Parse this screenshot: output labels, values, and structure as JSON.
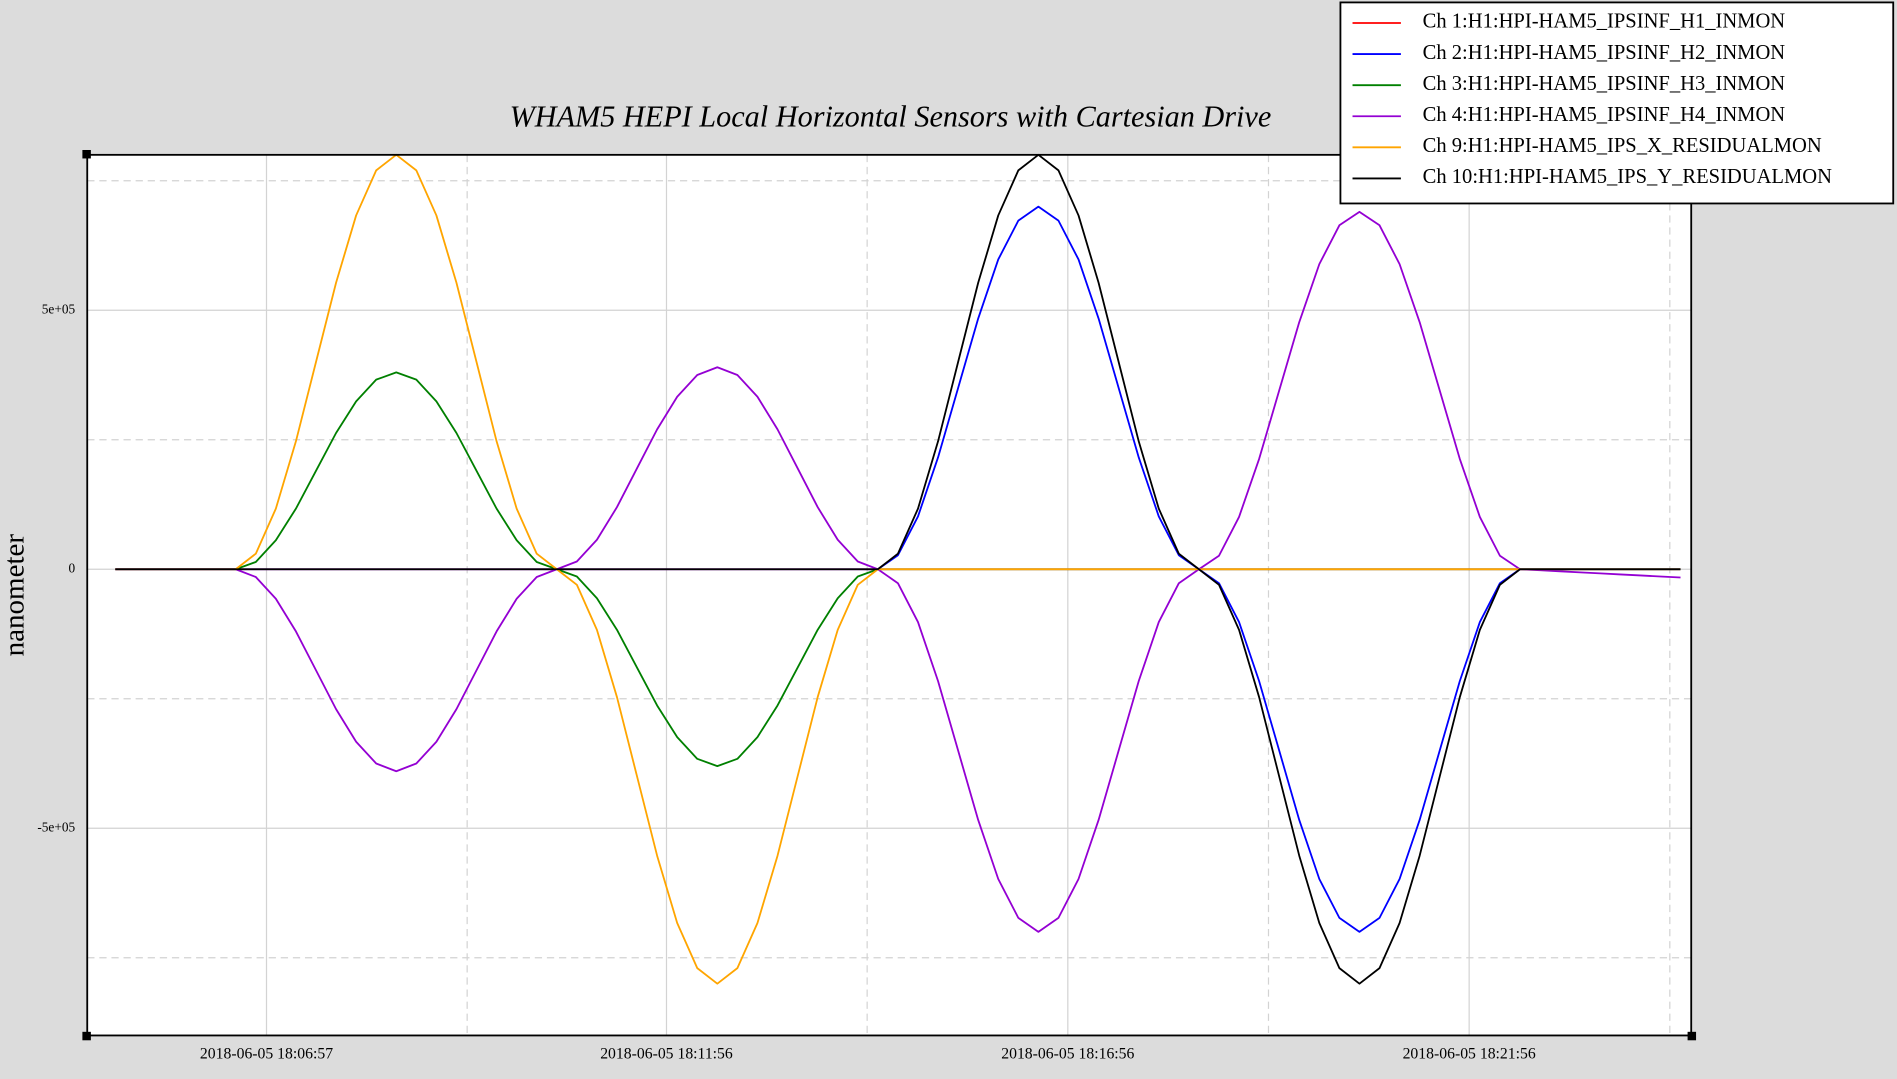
{
  "chart_data": {
    "type": "line",
    "title": "WHAM5 HEPI Local Horizontal Sensors with Cartesian Drive",
    "y_label": "nanometer",
    "legend": "upper right",
    "grid": true,
    "xlim": [
      "2018-06-05 18:04:43",
      "2018-06-05 18:24:42"
    ],
    "xticks": [
      "2018-06-05 18:06:57",
      "2018-06-05 18:11:56",
      "2018-06-05 18:16:56",
      "2018-06-05 18:21:56"
    ],
    "xminorticks": [
      "2018-06-05 18:09:27",
      "2018-06-05 18:14:26",
      "2018-06-05 18:19:26",
      "2018-06-05 18:24:26"
    ],
    "ylim": [
      -900000,
      800000
    ],
    "yticks": [
      {
        "value": -500000,
        "label": "-5e+05"
      },
      0,
      {
        "value": 500000,
        "label": "5e+05"
      }
    ],
    "yminorticks": [
      -750000,
      -250000,
      250000,
      750000
    ],
    "x": [
      "2018-06-05 18:05:04",
      "2018-06-05 18:05:19",
      "2018-06-05 18:05:34",
      "2018-06-05 18:05:49",
      "2018-06-05 18:06:04",
      "2018-06-05 18:06:19",
      "2018-06-05 18:06:34",
      "2018-06-05 18:06:49",
      "2018-06-05 18:07:04",
      "2018-06-05 18:07:19",
      "2018-06-05 18:07:34",
      "2018-06-05 18:07:49",
      "2018-06-05 18:08:04",
      "2018-06-05 18:08:19",
      "2018-06-05 18:08:34",
      "2018-06-05 18:08:49",
      "2018-06-05 18:09:04",
      "2018-06-05 18:09:19",
      "2018-06-05 18:09:34",
      "2018-06-05 18:09:49",
      "2018-06-05 18:10:04",
      "2018-06-05 18:10:19",
      "2018-06-05 18:10:34",
      "2018-06-05 18:10:49",
      "2018-06-05 18:11:04",
      "2018-06-05 18:11:19",
      "2018-06-05 18:11:34",
      "2018-06-05 18:11:49",
      "2018-06-05 18:12:04",
      "2018-06-05 18:12:19",
      "2018-06-05 18:12:34",
      "2018-06-05 18:12:49",
      "2018-06-05 18:13:04",
      "2018-06-05 18:13:19",
      "2018-06-05 18:13:34",
      "2018-06-05 18:13:49",
      "2018-06-05 18:14:04",
      "2018-06-05 18:14:19",
      "2018-06-05 18:14:34",
      "2018-06-05 18:14:49",
      "2018-06-05 18:15:04",
      "2018-06-05 18:15:19",
      "2018-06-05 18:15:34",
      "2018-06-05 18:15:49",
      "2018-06-05 18:16:04",
      "2018-06-05 18:16:19",
      "2018-06-05 18:16:34",
      "2018-06-05 18:16:49",
      "2018-06-05 18:17:04",
      "2018-06-05 18:17:19",
      "2018-06-05 18:17:34",
      "2018-06-05 18:17:49",
      "2018-06-05 18:18:04",
      "2018-06-05 18:18:19",
      "2018-06-05 18:18:34",
      "2018-06-05 18:18:49",
      "2018-06-05 18:19:04",
      "2018-06-05 18:19:19",
      "2018-06-05 18:19:34",
      "2018-06-05 18:19:49",
      "2018-06-05 18:20:04",
      "2018-06-05 18:20:19",
      "2018-06-05 18:20:34",
      "2018-06-05 18:20:49",
      "2018-06-05 18:21:04",
      "2018-06-05 18:21:19",
      "2018-06-05 18:21:34",
      "2018-06-05 18:21:49",
      "2018-06-05 18:22:04",
      "2018-06-05 18:22:19",
      "2018-06-05 18:22:34",
      "2018-06-05 18:22:49",
      "2018-06-05 18:23:04",
      "2018-06-05 18:23:19",
      "2018-06-05 18:23:34",
      "2018-06-05 18:23:49",
      "2018-06-05 18:24:04",
      "2018-06-05 18:24:19",
      "2018-06-05 18:24:34"
    ],
    "series": [
      {
        "name": "Ch 1:H1:HPI-HAM5_IPSINF_H1_INMON",
        "color": "#ff0000",
        "values": [
          0,
          0,
          0,
          0,
          0,
          0,
          0,
          0,
          0,
          0,
          0,
          0,
          0,
          0,
          0,
          0,
          0,
          0,
          0,
          0,
          0,
          0,
          0,
          0,
          0,
          0,
          0,
          0,
          0,
          0,
          0,
          0,
          0,
          0,
          0,
          0,
          0,
          0,
          0,
          0,
          0,
          0,
          0,
          0,
          0,
          0,
          0,
          0,
          0,
          0,
          0,
          0,
          0,
          0,
          0,
          0,
          0,
          0,
          0,
          0,
          0,
          0,
          0,
          0,
          0,
          0,
          0,
          0,
          0,
          0,
          0,
          0,
          0,
          0,
          0,
          0,
          0,
          0,
          0
        ]
      },
      {
        "name": "Ch 2:H1:HPI-HAM5_IPSINF_H2_INMON",
        "color": "#0000ff",
        "values": [
          0,
          0,
          0,
          0,
          0,
          0,
          0,
          0,
          0,
          0,
          0,
          0,
          0,
          0,
          0,
          0,
          0,
          0,
          0,
          0,
          0,
          0,
          0,
          0,
          0,
          0,
          0,
          0,
          0,
          0,
          0,
          0,
          0,
          0,
          0,
          0,
          0,
          0,
          0,
          27000,
          102000,
          216000,
          350000,
          484000,
          598000,
          673000,
          700000,
          673000,
          598000,
          484000,
          350000,
          216000,
          102000,
          27000,
          0,
          -27000,
          -102000,
          -216000,
          -350000,
          -484000,
          -598000,
          -673000,
          -700000,
          -673000,
          -598000,
          -484000,
          -350000,
          -216000,
          -102000,
          -27000,
          0,
          0,
          0,
          0,
          0,
          0,
          0,
          0,
          0
        ]
      },
      {
        "name": "Ch 3:H1:HPI-HAM5_IPSINF_H3_INMON",
        "color": "#008000",
        "values": [
          0,
          0,
          0,
          0,
          0,
          0,
          0,
          14000,
          56000,
          117000,
          190000,
          263000,
          324000,
          366000,
          380000,
          366000,
          324000,
          263000,
          190000,
          117000,
          56000,
          14000,
          0,
          -14000,
          -56000,
          -117000,
          -190000,
          -263000,
          -324000,
          -366000,
          -380000,
          -366000,
          -324000,
          -263000,
          -190000,
          -117000,
          -56000,
          -14000,
          0,
          0,
          0,
          0,
          0,
          0,
          0,
          0,
          0,
          0,
          0,
          0,
          0,
          0,
          0,
          0,
          0,
          0,
          0,
          0,
          0,
          0,
          0,
          0,
          0,
          0,
          0,
          0,
          0,
          0,
          0,
          0,
          0,
          0,
          0,
          0,
          0,
          0,
          0,
          0,
          0
        ]
      },
      {
        "name": "Ch 4:H1:HPI-HAM5_IPSINF_H4_INMON",
        "color": "#9400d3",
        "values": [
          0,
          0,
          0,
          0,
          0,
          0,
          0,
          -15000,
          -57000,
          -120000,
          -195000,
          -270000,
          -333000,
          -375000,
          -390000,
          -375000,
          -333000,
          -270000,
          -195000,
          -120000,
          -57000,
          -15000,
          0,
          15000,
          57000,
          120000,
          195000,
          270000,
          333000,
          375000,
          390000,
          375000,
          333000,
          270000,
          195000,
          120000,
          57000,
          15000,
          0,
          -27000,
          -102000,
          -216000,
          -350000,
          -484000,
          -598000,
          -673000,
          -700000,
          -673000,
          -598000,
          -484000,
          -350000,
          -216000,
          -102000,
          -27000,
          0,
          26000,
          101000,
          213000,
          345000,
          477000,
          589000,
          664000,
          690000,
          664000,
          589000,
          477000,
          345000,
          213000,
          101000,
          26000,
          0,
          -2000,
          -4000,
          -6000,
          -8000,
          -10000,
          -12000,
          -14000,
          -16000
        ]
      },
      {
        "name": "Ch 9:H1:HPI-HAM5_IPS_X_RESIDUALMON",
        "color": "#ffa500",
        "values": [
          0,
          0,
          0,
          0,
          0,
          0,
          0,
          30000,
          117000,
          247000,
          400000,
          553000,
          683000,
          770000,
          800000,
          770000,
          683000,
          553000,
          400000,
          247000,
          117000,
          30000,
          0,
          -30000,
          -117000,
          -247000,
          -400000,
          -553000,
          -683000,
          -770000,
          -800000,
          -770000,
          -683000,
          -553000,
          -400000,
          -247000,
          -117000,
          -30000,
          0,
          0,
          0,
          0,
          0,
          0,
          0,
          0,
          0,
          0,
          0,
          0,
          0,
          0,
          0,
          0,
          0,
          0,
          0,
          0,
          0,
          0,
          0,
          0,
          0,
          0,
          0,
          0,
          0,
          0,
          0,
          0,
          0,
          0,
          0,
          0,
          0,
          0,
          0,
          0,
          0
        ]
      },
      {
        "name": "Ch 10:H1:HPI-HAM5_IPS_Y_RESIDUALMON",
        "color": "#000000",
        "values": [
          0,
          0,
          0,
          0,
          0,
          0,
          0,
          0,
          0,
          0,
          0,
          0,
          0,
          0,
          0,
          0,
          0,
          0,
          0,
          0,
          0,
          0,
          0,
          0,
          0,
          0,
          0,
          0,
          0,
          0,
          0,
          0,
          0,
          0,
          0,
          0,
          0,
          0,
          0,
          30000,
          117000,
          247000,
          400000,
          553000,
          683000,
          770000,
          800000,
          770000,
          683000,
          553000,
          400000,
          247000,
          117000,
          30000,
          0,
          -30000,
          -117000,
          -247000,
          -400000,
          -553000,
          -683000,
          -770000,
          -800000,
          -770000,
          -683000,
          -553000,
          -400000,
          -247000,
          -117000,
          -30000,
          0,
          0,
          0,
          0,
          0,
          0,
          0,
          0,
          0
        ]
      }
    ]
  }
}
